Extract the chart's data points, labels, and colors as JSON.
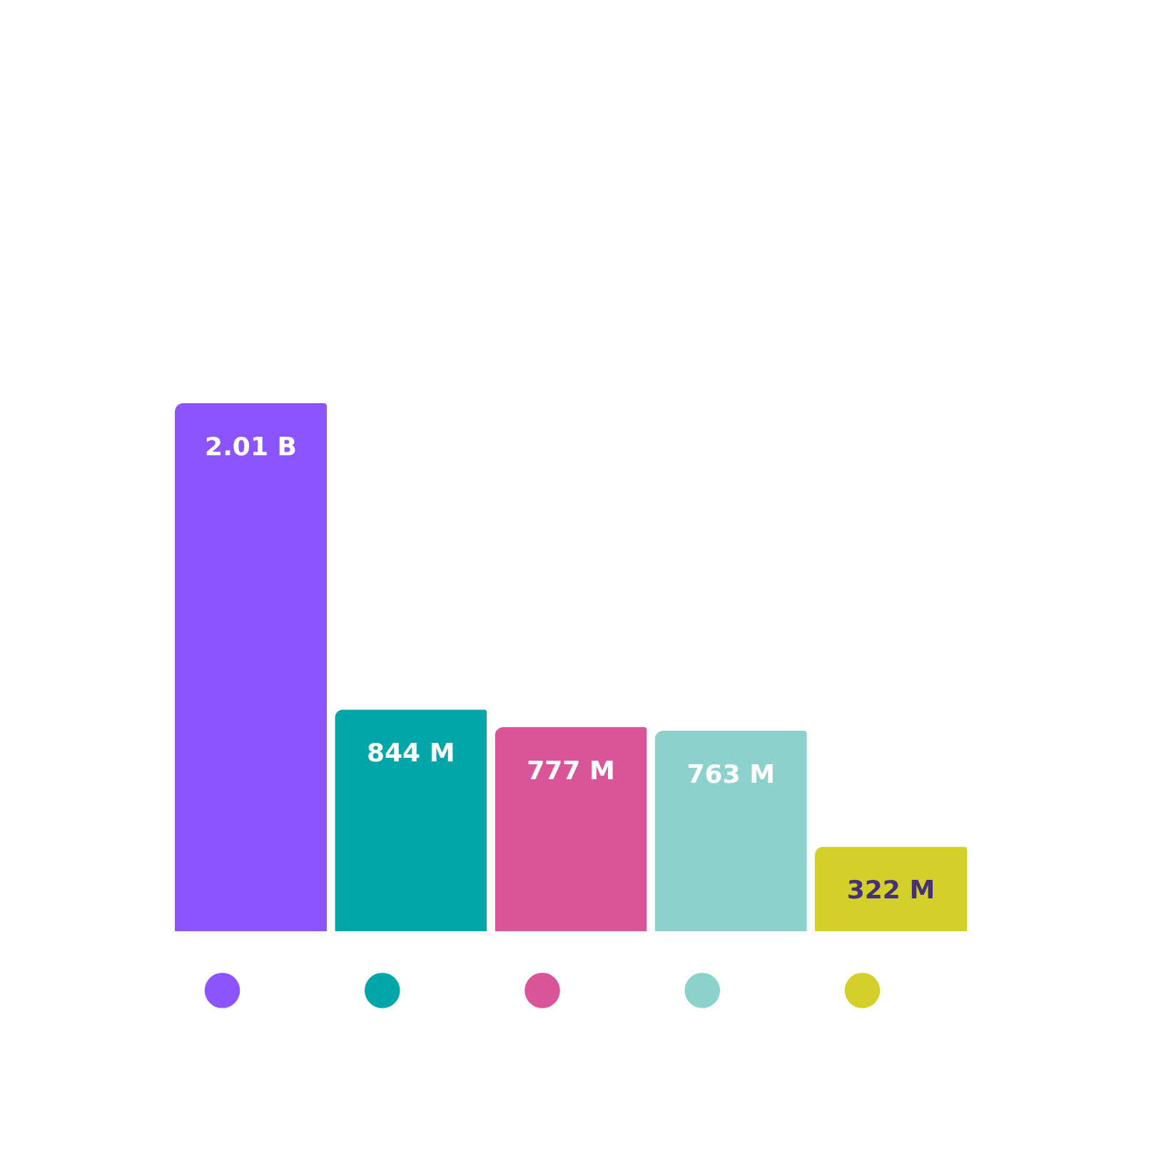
{
  "chart_data": {
    "type": "bar",
    "categories": [
      null,
      null,
      null,
      null,
      null
    ],
    "values": [
      2010000000,
      844000000,
      777000000,
      763000000,
      322000000
    ],
    "colors": [
      "#8c54ff",
      "#02a5a8",
      "#d85597",
      "#8dd1cd",
      "#d3d02c"
    ],
    "value_labels": [
      "2.01 B",
      "844 M",
      "777 M",
      "763 M",
      "322 M"
    ]
  }
}
